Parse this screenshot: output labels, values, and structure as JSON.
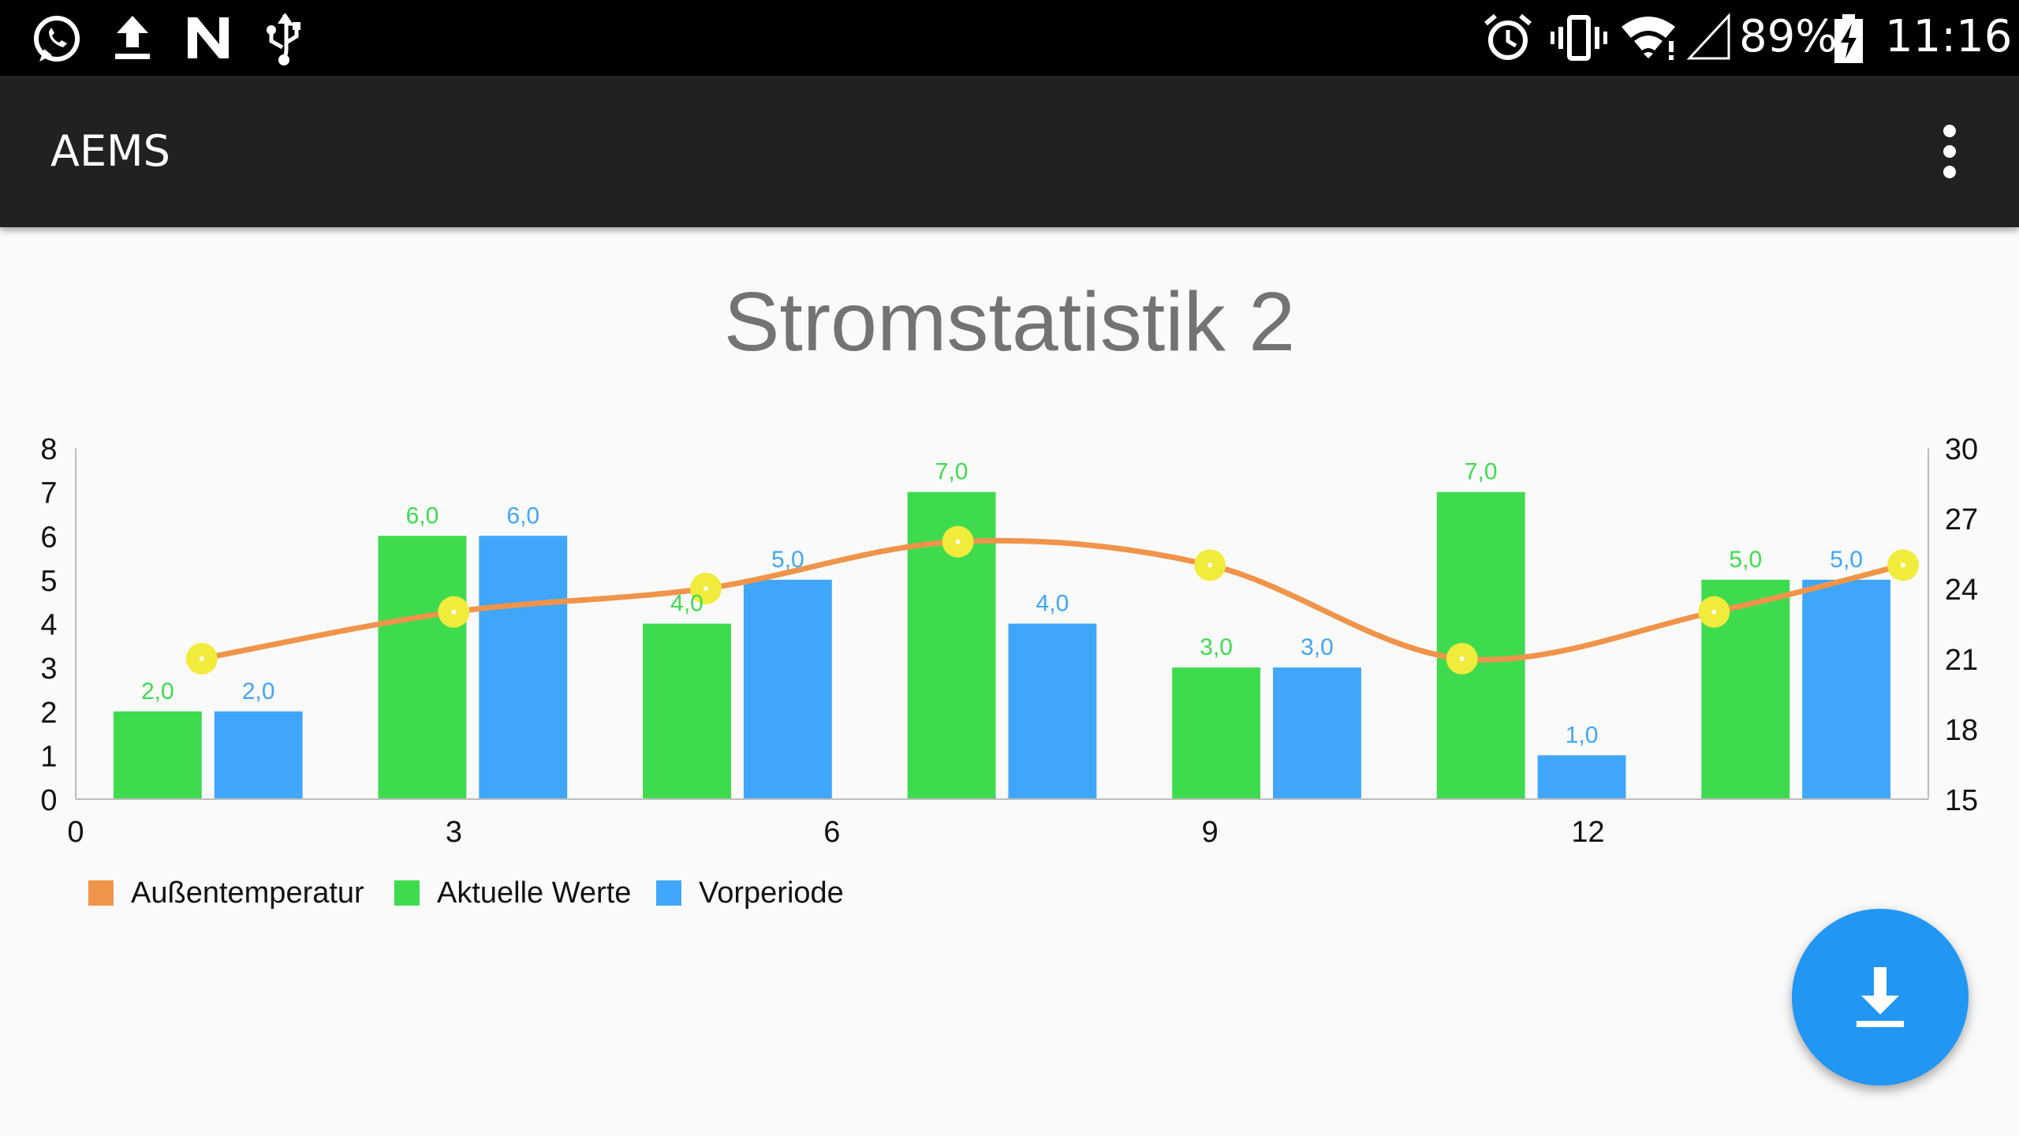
{
  "status_bar": {
    "battery_percent": "89%",
    "time": "11:16",
    "icons": [
      "whatsapp-icon",
      "upload-icon",
      "n-icon",
      "usb-icon",
      "alarm-icon",
      "vibrate-icon",
      "wifi-icon",
      "signal-icon",
      "battery-charging-icon"
    ]
  },
  "app_bar": {
    "title": "AEMS",
    "menu_icon": "more-vert-icon"
  },
  "colors": {
    "current": "#3fdb4f",
    "previous": "#40a6fa",
    "temperature": "#f0944a",
    "temperature_point": "#f1eb3c",
    "fab": "#2196f3"
  },
  "fab": {
    "icon": "download-icon"
  },
  "chart_data": {
    "type": "bar",
    "title": "Stromstatistik 2",
    "x_ticks": [
      "0",
      "3",
      "6",
      "9",
      "12"
    ],
    "x_tick_values": [
      0,
      3,
      6,
      9,
      12
    ],
    "xlim": [
      0,
      14.7
    ],
    "ylim_left": [
      0,
      8
    ],
    "y_left_ticks": [
      "0",
      "1",
      "2",
      "3",
      "4",
      "5",
      "6",
      "7",
      "8"
    ],
    "ylim_right": [
      15,
      30
    ],
    "y_right_ticks": [
      "15",
      "18",
      "21",
      "24",
      "27",
      "30"
    ],
    "legend_position": "bottom-left",
    "series": [
      {
        "name": "Außentemperatur",
        "type": "line",
        "axis": "right",
        "x": [
          1,
          3,
          5,
          7,
          9,
          11,
          13,
          14.5
        ],
        "values": [
          21,
          23,
          24,
          26,
          25,
          21,
          23,
          25
        ]
      },
      {
        "name": "Aktuelle Werte",
        "type": "bar",
        "axis": "left",
        "x": [
          0.65,
          2.75,
          4.85,
          6.95,
          9.05,
          11.15,
          13.25
        ],
        "values": [
          2,
          6,
          4,
          7,
          3,
          7,
          5
        ],
        "labels": [
          "2,0",
          "6,0",
          "4,0",
          "7,0",
          "3,0",
          "7,0",
          "5,0"
        ]
      },
      {
        "name": "Vorperiode",
        "type": "bar",
        "axis": "left",
        "x": [
          1.45,
          3.55,
          5.65,
          7.75,
          9.85,
          11.95,
          14.05
        ],
        "values": [
          2,
          6,
          5,
          4,
          3,
          1,
          5
        ],
        "labels": [
          "2,0",
          "6,0",
          "5,0",
          "4,0",
          "3,0",
          "1,0",
          "5,0"
        ]
      }
    ]
  }
}
